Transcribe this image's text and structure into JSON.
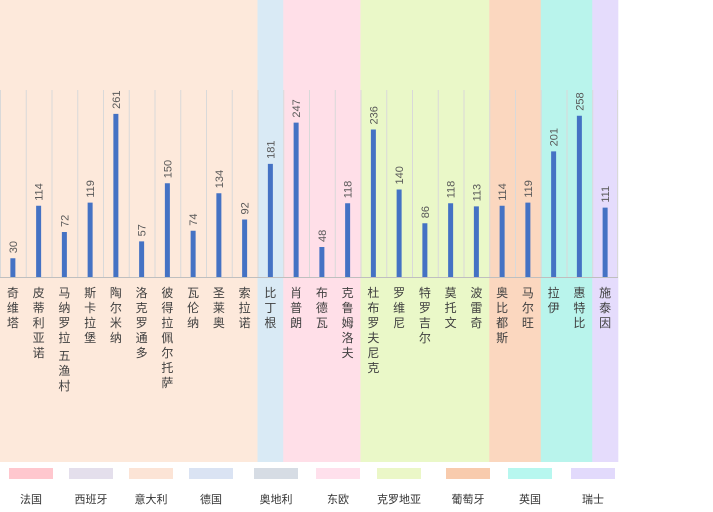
{
  "chart_data": {
    "type": "bar",
    "categories": [
      "奇维塔",
      "皮蒂利亚诺",
      "马纳罗拉 五渔村",
      "斯卡拉堡",
      "陶尔米纳",
      "洛克罗通多",
      "彼得拉佩尔托萨",
      "瓦伦纳",
      "圣莱奥",
      "索拉诺",
      "比丁根",
      "肖普朗",
      "布德瓦",
      "克鲁姆洛夫",
      "杜布罗夫尼克",
      "罗维尼",
      "特罗吉尔",
      "莫托文",
      "波雷奇",
      "奥比都斯",
      "马尔旺",
      "拉伊",
      "惠特比",
      "施泰因"
    ],
    "values": [
      30,
      114,
      72,
      119,
      261,
      57,
      150,
      74,
      134,
      92,
      181,
      247,
      48,
      118,
      236,
      140,
      86,
      118,
      113,
      114,
      119,
      201,
      258,
      111
    ],
    "groups": [
      "意大利",
      "意大利",
      "意大利",
      "意大利",
      "意大利",
      "意大利",
      "意大利",
      "意大利",
      "意大利",
      "意大利",
      "德国",
      "东欧",
      "东欧",
      "东欧",
      "克罗地亚",
      "克罗地亚",
      "克罗地亚",
      "克罗地亚",
      "克罗地亚",
      "葡萄牙",
      "葡萄牙",
      "英国",
      "英国",
      "瑞士"
    ],
    "ylim": [
      0,
      300
    ],
    "title": "",
    "xlabel": "",
    "ylabel": "",
    "bar_color": "#4472c4"
  },
  "legend": [
    {
      "label": "法国",
      "color": "#ffc7ce"
    },
    {
      "label": "西班牙",
      "color": "#e4dfec"
    },
    {
      "label": "意大利",
      "color": "#fce4d6"
    },
    {
      "label": "德国",
      "color": "#dae3f3"
    },
    {
      "label": "奥地利",
      "color": "#d6dce4"
    },
    {
      "label": "东欧",
      "color": "#ffe0ec"
    },
    {
      "label": "克罗地亚",
      "color": "#ebf7c7"
    },
    {
      "label": "葡萄牙",
      "color": "#f8cbad"
    },
    {
      "label": "英国",
      "color": "#b7f7ef"
    },
    {
      "label": "瑞士",
      "color": "#e2dafc"
    }
  ],
  "group_bg": {
    "意大利": "#fde9db",
    "德国": "#d9eaf5",
    "东欧": "#ffdfe8",
    "克罗地亚": "#eaf8c8",
    "葡萄牙": "#fbd7bf",
    "英国": "#b9f4ec",
    "瑞士": "#e5dcfc"
  }
}
